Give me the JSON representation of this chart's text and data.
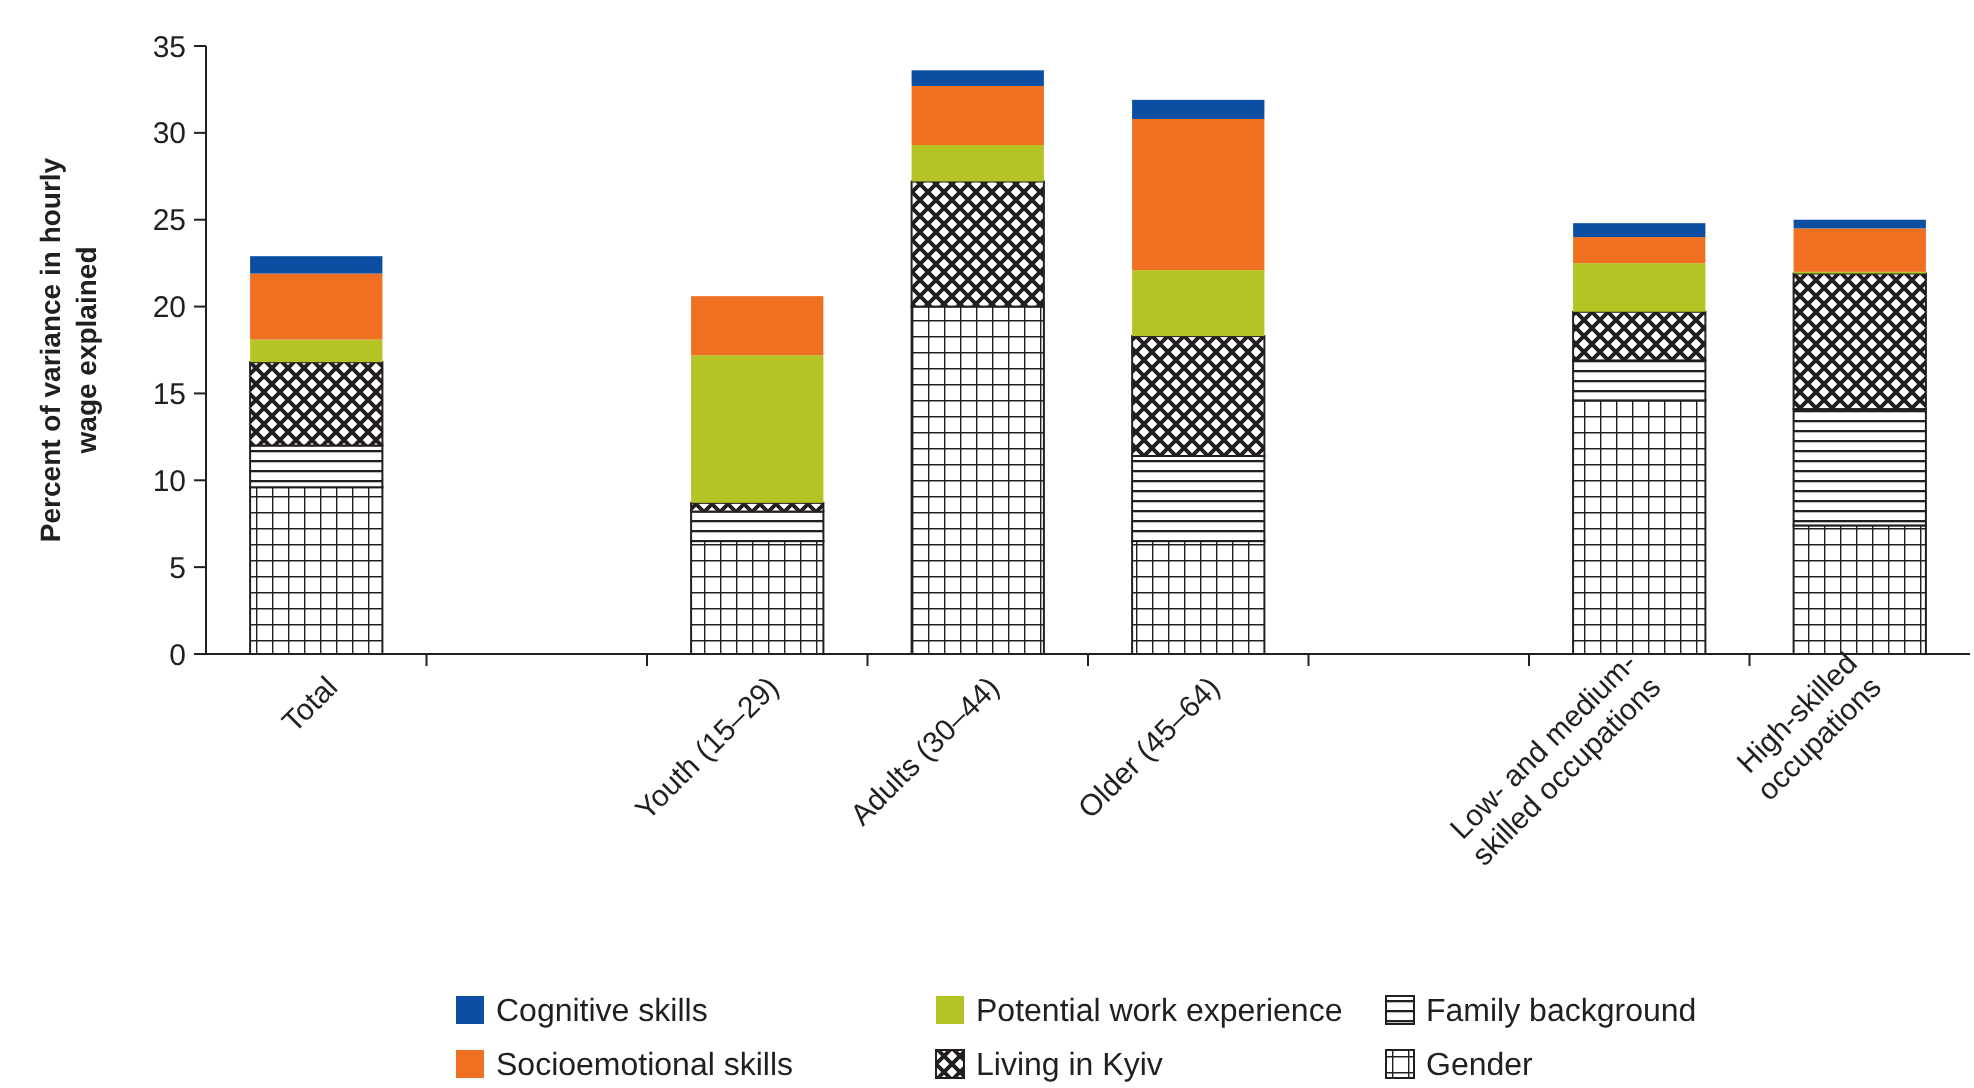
{
  "chart_data": {
    "type": "bar",
    "stacked": true,
    "ylabel": "Percent of variance in hourly\nwage explained",
    "categories": [
      "Total",
      null,
      "Youth (15–29)",
      "Adults (30–44)",
      "Older (45–64)",
      null,
      "Low- and medium-\nskilled occupations",
      "High-skilled\noccupations"
    ],
    "ylim": [
      0,
      35
    ],
    "yticks": [
      0,
      5,
      10,
      15,
      20,
      25,
      30,
      35
    ],
    "legend": "bottom",
    "grid": false,
    "series": [
      {
        "name": "Gender",
        "color": "#231f20",
        "values": [
          9.6,
          null,
          6.5,
          20.0,
          6.5,
          null,
          14.6,
          7.4
        ]
      },
      {
        "name": "Family background",
        "color": "#231f20",
        "values": [
          2.4,
          null,
          1.7,
          0,
          4.9,
          null,
          2.3,
          6.7
        ]
      },
      {
        "name": "Living in Kyiv",
        "color": "#231f20",
        "values": [
          4.8,
          null,
          0.5,
          7.2,
          6.9,
          null,
          2.8,
          7.8
        ]
      },
      {
        "name": "Potential work experience",
        "color": "#b5c425",
        "values": [
          1.3,
          null,
          8.5,
          2.1,
          3.8,
          null,
          2.8,
          0.1
        ]
      },
      {
        "name": "Socioemotional skills",
        "color": "#f07022",
        "values": [
          3.8,
          null,
          3.4,
          3.4,
          8.7,
          null,
          1.5,
          2.5
        ]
      },
      {
        "name": "Cognitive skills",
        "color": "#0b4ea2",
        "values": [
          1.0,
          null,
          0,
          0.9,
          1.1,
          null,
          0.8,
          0.5
        ]
      }
    ]
  }
}
